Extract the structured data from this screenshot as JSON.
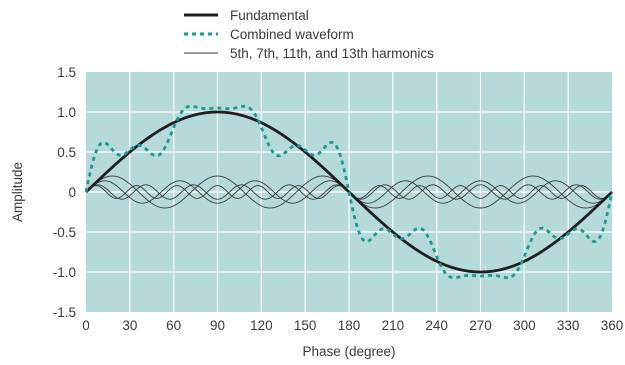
{
  "chart_data": {
    "type": "line",
    "title": "",
    "xlabel": "Phase (degree)",
    "ylabel": "Amplitude",
    "xlim": [
      0,
      360
    ],
    "ylim": [
      -1.5,
      1.5
    ],
    "xticks": [
      "0",
      "30",
      "60",
      "90",
      "120",
      "150",
      "180",
      "210",
      "240",
      "270",
      "300",
      "330",
      "360"
    ],
    "yticks": [
      "1.5",
      "1.0",
      "0.5",
      "0",
      "-0.5",
      "-1.0",
      "-1.5"
    ],
    "grid": true,
    "legend_placement": "top",
    "background_color": "#b6d9da",
    "grid_color": "#ffffff",
    "series": [
      {
        "name": "Fundamental",
        "color": "#1f1f1f",
        "style": "solid",
        "function": "sin(x)",
        "x": [
          0,
          30,
          60,
          90,
          120,
          150,
          180,
          210,
          240,
          270,
          300,
          330,
          360
        ],
        "values": [
          0,
          0.5,
          0.87,
          1.0,
          0.87,
          0.5,
          0,
          -0.5,
          -0.87,
          -1.0,
          -0.87,
          -0.5,
          0
        ]
      },
      {
        "name": "Combined waveform",
        "color": "#1a9a94",
        "style": "dotted",
        "function": "sin(x) + 0.2 sin(5x) + 0.14 sin(7x) + 0.09 sin(11x) + 0.08 sin(13x)",
        "x": [
          0,
          10,
          30,
          50,
          70,
          90,
          110,
          130,
          150,
          170,
          180,
          190,
          210,
          230,
          250,
          270,
          290,
          310,
          330,
          350,
          360
        ],
        "values": [
          0,
          0.62,
          0.55,
          0.55,
          1.05,
          1.05,
          1.05,
          0.55,
          0.55,
          0.62,
          0,
          -0.62,
          -0.55,
          -0.55,
          -1.05,
          -1.05,
          -1.05,
          -0.55,
          -0.55,
          -0.62,
          0
        ]
      },
      {
        "name": "5th, 7th, 11th, and 13th harmonics",
        "color": "#3a3a3a",
        "style": "thin",
        "harmonics": [
          {
            "order": 5,
            "amplitude": 0.2,
            "function": "0.2 sin(5x)"
          },
          {
            "order": 7,
            "amplitude": 0.14,
            "function": "0.14 sin(7x)"
          },
          {
            "order": 11,
            "amplitude": 0.09,
            "function": "0.09 sin(11x)"
          },
          {
            "order": 13,
            "amplitude": 0.08,
            "function": "0.08 sin(13x)"
          }
        ]
      }
    ]
  }
}
